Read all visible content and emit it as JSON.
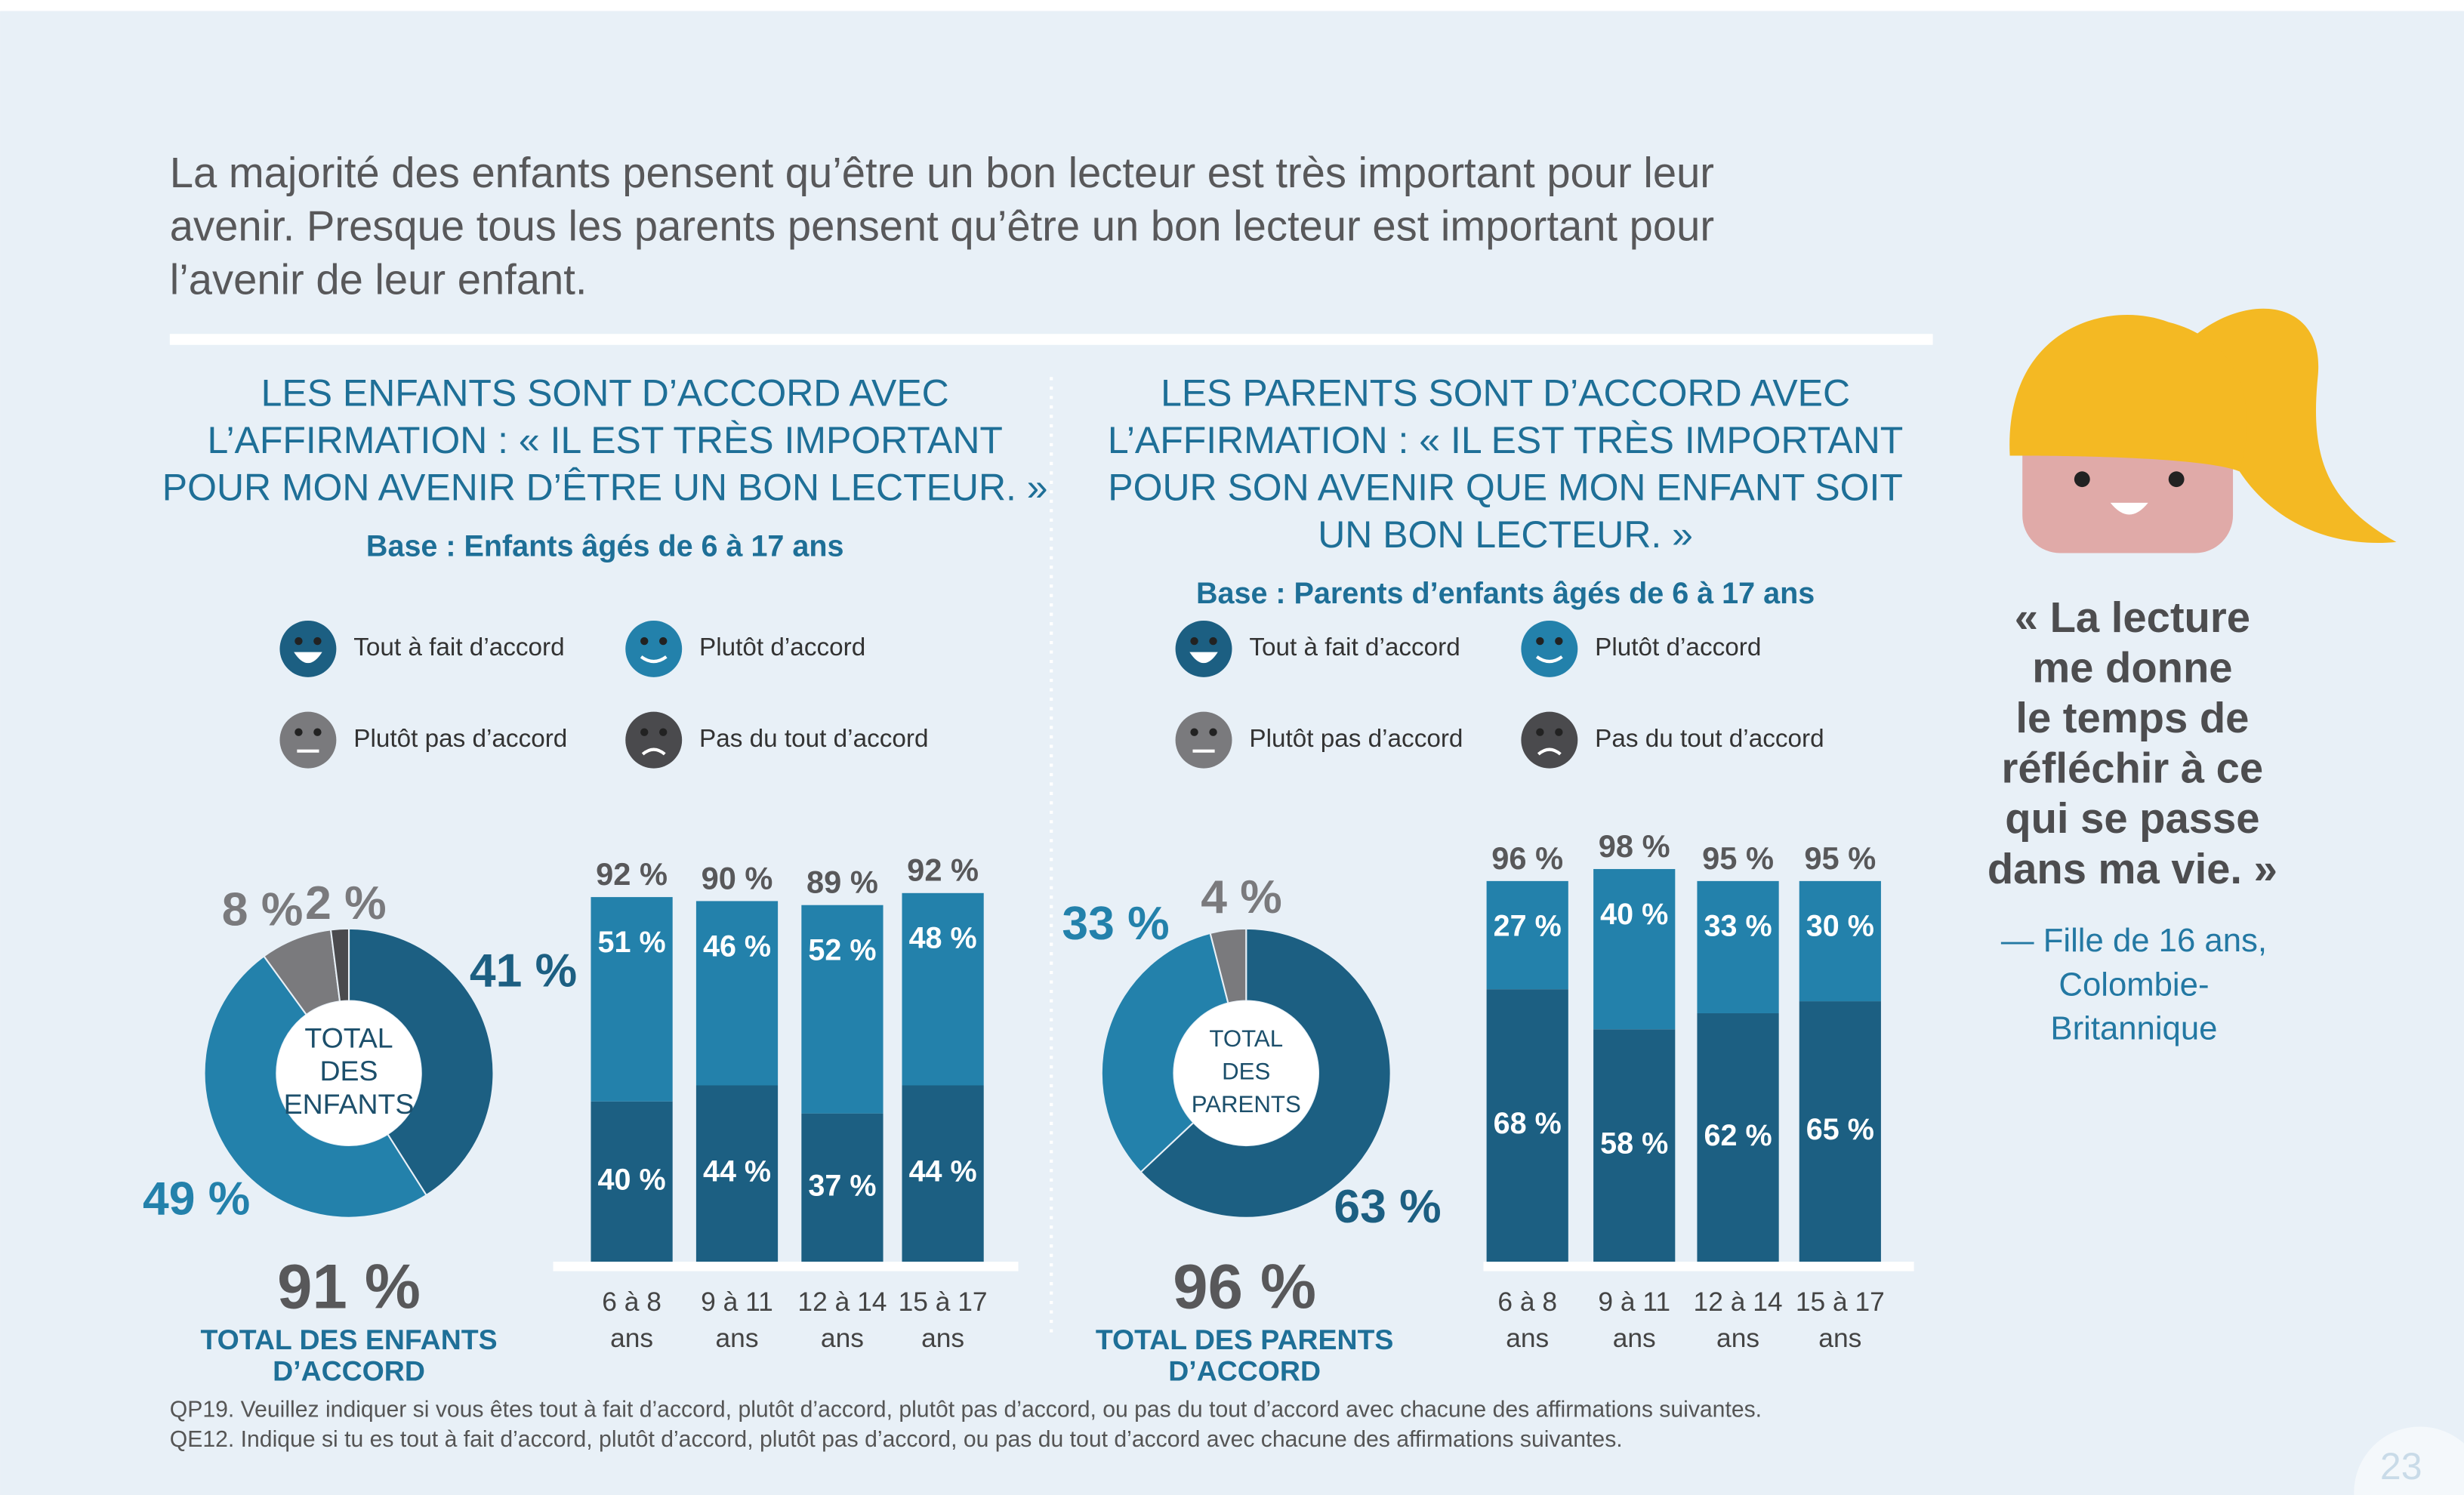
{
  "header": {
    "lines": [
      "La majorité des enfants pensent qu’être un bon lecteur est très important pour leur",
      "avenir. Presque tous les parents pensent qu’être un bon lecteur est important pour",
      "l’avenir de leur enfant."
    ]
  },
  "panels": [
    {
      "heading": [
        "LES ENFANTS SONT D’ACCORD AVEC",
        "L’AFFIRMATION : « IL EST TRÈS IMPORTANT",
        "POUR MON AVENIR D’ÊTRE UN BON LECTEUR. »"
      ],
      "base": "Base : Enfants âgés de 6 à 17 ans",
      "total": "91 %",
      "total_caption": [
        "TOTAL DES ENFANTS",
        "D’ACCORD"
      ]
    },
    {
      "heading": [
        "LES PARENTS SONT D’ACCORD AVEC",
        "L’AFFIRMATION : « IL EST TRÈS IMPORTANT",
        "POUR SON AVENIR QUE MON ENFANT SOIT",
        "UN BON LECTEUR. »"
      ],
      "base": "Base : Parents d’enfants âgés de 6 à 17 ans",
      "total": "96 %",
      "total_caption": [
        "TOTAL DES PARENTS",
        "D’ACCORD"
      ]
    }
  ],
  "chart_data": [
    {
      "type": "donut",
      "categories": [
        "Tout à fait d’accord",
        "Plutôt d’accord",
        "Plutôt pas d’accord",
        "Pas du tout d’accord"
      ],
      "colors": [
        "#1c5f82",
        "#2381ab",
        "#7a7a7d",
        "#4a4a4d"
      ],
      "values": [
        41,
        49,
        8,
        2
      ],
      "value_labels": [
        "41 %",
        "49 %",
        "8 %",
        "2 %"
      ],
      "center_label": [
        "TOTAL",
        "DES",
        "ENFANTS"
      ]
    },
    {
      "type": "bar",
      "stacked": true,
      "categories": [
        "6 à 8 ans",
        "9 à 11 ans",
        "12 à 14 ans",
        "15 à 17 ans"
      ],
      "ylim": [
        0,
        100
      ],
      "series": [
        {
          "color": "#1c5f82",
          "values": [
            40,
            44,
            37,
            44
          ],
          "value_labels": [
            "40 %",
            "44 %",
            "37 %",
            "44 %"
          ]
        },
        {
          "color": "#2381ab",
          "values": [
            51,
            46,
            52,
            48
          ],
          "value_labels": [
            "51 %",
            "46 %",
            "52 %",
            "48 %"
          ]
        }
      ],
      "totals": [
        92,
        90,
        89,
        92
      ],
      "total_labels": [
        "92 %",
        "90 %",
        "89 %",
        "92 %"
      ]
    },
    {
      "type": "donut",
      "categories": [
        "Tout à fait d’accord",
        "Plutôt d’accord",
        "Plutôt pas d’accord",
        "Pas du tout d’accord"
      ],
      "colors": [
        "#1c5f82",
        "#2381ab",
        "#7a7a7d",
        "#4a4a4d"
      ],
      "values": [
        63,
        33,
        4,
        null
      ],
      "value_labels": [
        "63 %",
        "33 %",
        "4 %",
        null
      ],
      "center_label": [
        "TOTAL",
        "DES",
        "PARENTS"
      ]
    },
    {
      "type": "bar",
      "stacked": true,
      "categories": [
        "6 à 8 ans",
        "9 à 11 ans",
        "12 à 14 ans",
        "15 à 17 ans"
      ],
      "ylim": [
        0,
        100
      ],
      "series": [
        {
          "color": "#1c5f82",
          "values": [
            68,
            58,
            62,
            65
          ],
          "value_labels": [
            "68 %",
            "58 %",
            "62 %",
            "65 %"
          ]
        },
        {
          "color": "#2381ab",
          "values": [
            27,
            40,
            33,
            30
          ],
          "value_labels": [
            "27 %",
            "40 %",
            "33 %",
            "30 %"
          ]
        }
      ],
      "totals": [
        96,
        98,
        95,
        95
      ],
      "total_labels": [
        "96 %",
        "98 %",
        "95 %",
        "95 %"
      ]
    }
  ],
  "quote": {
    "lines": [
      "« La lecture",
      "me donne",
      "le temps de",
      "réfléchir à ce",
      "qui se passe",
      "dans ma vie. »"
    ],
    "attribution": [
      "— Fille de 16 ans,",
      "Colombie-",
      "Britannique"
    ]
  },
  "footnotes": [
    "QP19. Veuillez indiquer si vous êtes tout à fait d’accord, plutôt d’accord, plutôt pas d’accord, ou pas du tout d’accord avec chacune des affirmations suivantes.",
    "QE12. Indique si tu es tout à fait d’accord, plutôt d’accord, plutôt pas d’accord, ou pas du tout d’accord avec chacune des affirmations suivantes."
  ],
  "page_number": "23"
}
